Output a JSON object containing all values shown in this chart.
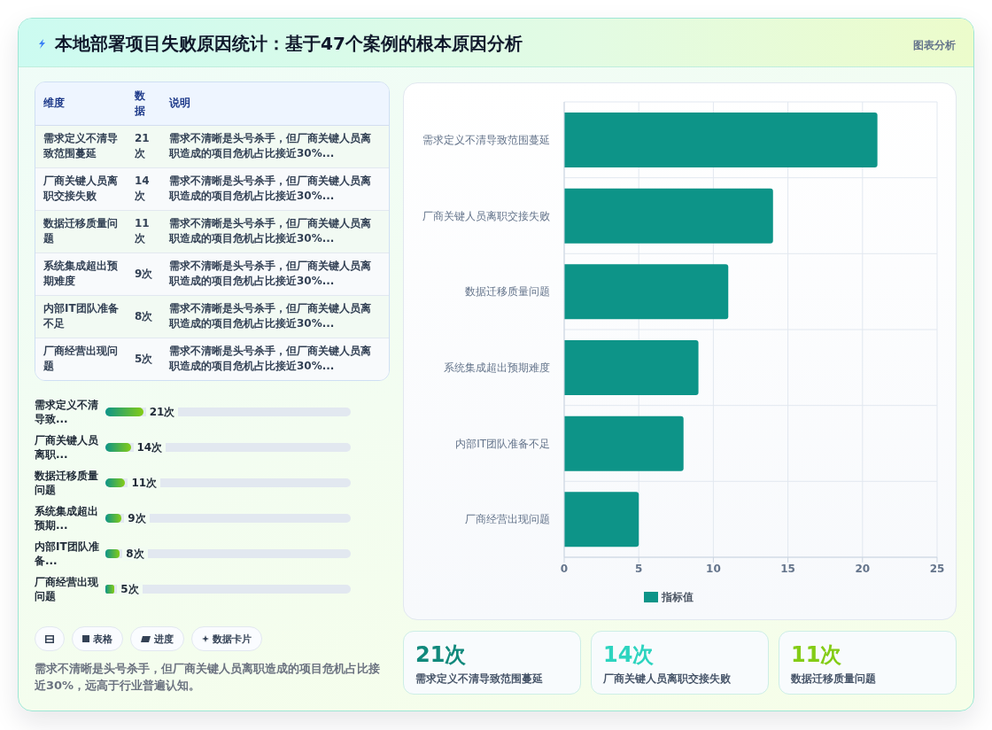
{
  "chart_data": [
    {
      "type": "other",
      "title": "本地部署项目失败原因统计：基于47个案例的根本原因分析",
      "categories": [
        "需求定义不清导致范围蔓延",
        "厂商关键人员离职交接失败",
        "数据迁移质量问题",
        "系统集成超出预期难度",
        "内部IT团队准备不足",
        "厂商经营出现问题"
      ],
      "value_labels": [
        "21次",
        "14次",
        "11次",
        "9次",
        "8次",
        "5次"
      ],
      "annotations": [
        "维度",
        "数据",
        "说明",
        "需求不清晰是头号杀手，但厂商关键人员离职造成的项目危机占比接近30%...",
        "需求不清晰是头号杀手，但厂商关键人员离职造成的项目危机占比接近30%...",
        "需求不清晰是头号杀手，但厂商关键人员离职造成的项目危机占比接近30%...",
        "需求不清晰是头号杀手，但厂商关键人员离职造成的项目危机占比接近30%...",
        "需求不清晰是头号杀手，但厂商关键人员离职造成的项目危机占比接近30%...",
        "需求不清晰是头号杀手，但厂商关键人员离职造成的项目危机占比接近30%..."
      ]
    },
    {
      "type": "bar",
      "orientation": "horizontal",
      "categories": [
        "需求定义不清导致...",
        "厂商关键人员离职...",
        "数据迁移质量问题",
        "系统集成超出预期...",
        "内部IT团队准备...",
        "厂商经营出现问题"
      ],
      "values": [
        21,
        14,
        11,
        9,
        8,
        5
      ],
      "value_labels": [
        "21次",
        "14次",
        "11次",
        "9次",
        "8次",
        "5次"
      ],
      "color": "#0d9488",
      "tick_labels": "y",
      "annotations": [
        "表格",
        "进度",
        "数据卡片",
        "需求不清晰是头号杀手，但厂商关键人员离职造成的项目危机占比接近30%，远高于行业普遍认知。"
      ]
    },
    {
      "type": "bar",
      "orientation": "horizontal",
      "categories": [
        "需求定义不清导致范围蔓延",
        "厂商关键人员离职交接失败",
        "数据迁移质量问题",
        "系统集成超出预期难度",
        "内部IT团队准备不足",
        "厂商经营出现问题"
      ],
      "series": [
        {
          "name": "指标值",
          "color": "#0d9488",
          "values": [
            21,
            14,
            11,
            9,
            8,
            5
          ]
        }
      ],
      "xlim": [
        0,
        25
      ],
      "xticks": [
        0,
        5,
        10,
        15,
        20,
        25
      ],
      "grid": true,
      "legend": "bottom",
      "annotations": [
        "图表分析"
      ]
    },
    {
      "type": "other",
      "categories": [
        "需求定义不清导致范围蔓延",
        "厂商关键人员离职交接失败",
        "数据迁移质量问题"
      ],
      "value_labels": [
        "21次",
        "14次",
        "11次"
      ]
    }
  ]
}
